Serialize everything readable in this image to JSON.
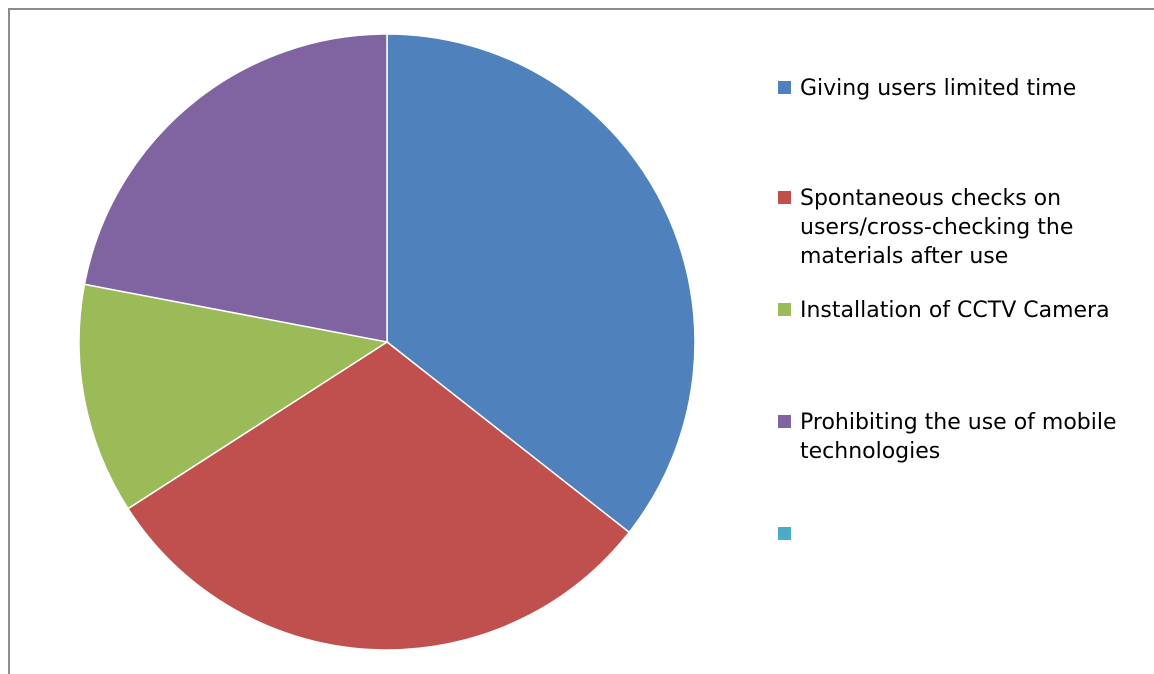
{
  "chart_data": {
    "type": "pie",
    "title": "",
    "start_angle_deg": 0,
    "direction": "clockwise",
    "slices": [
      {
        "label": "Giving users limited time",
        "value": 35.6,
        "color": "#4F81BD"
      },
      {
        "label": "Spontaneous checks on users/cross-checking the materials after use",
        "value": 30.3,
        "color": "#C0504D"
      },
      {
        "label": "Installation of CCTV Camera",
        "value": 12.1,
        "color": "#9BBB59"
      },
      {
        "label": "Prohibiting the use of mobile technologies",
        "value": 22.0,
        "color": "#8064A2"
      },
      {
        "label": "",
        "value": 0,
        "color": "#4BACC6"
      }
    ],
    "legend": {
      "position": "right"
    }
  }
}
